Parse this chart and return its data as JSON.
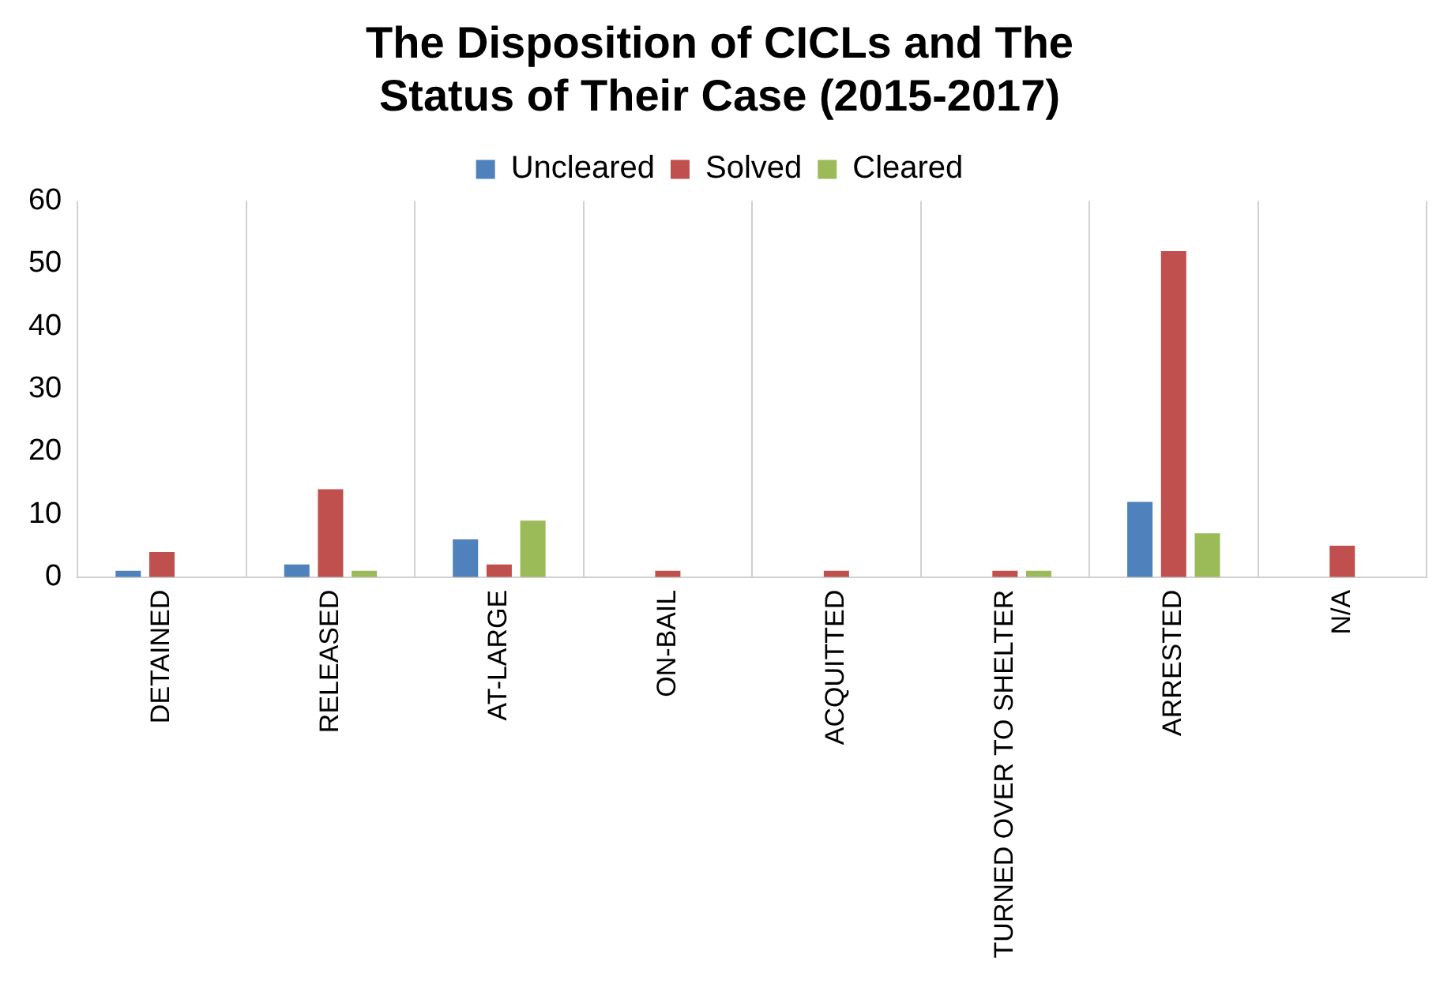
{
  "chart_data": {
    "type": "bar",
    "title": "The Disposition of CICLs and The Status of Their Case (2015-2017)",
    "categories": [
      "DETAINED",
      "RELEASED",
      "AT-LARGE",
      "ON-BAIL",
      "ACQUITTED",
      "TURNED OVER TO SHELTER",
      "ARRESTED",
      "N/A"
    ],
    "series": [
      {
        "name": "Uncleared",
        "color": "#4f81bd",
        "values": [
          1,
          2,
          6,
          0,
          0,
          0,
          12,
          0
        ]
      },
      {
        "name": "Solved",
        "color": "#c0504d",
        "values": [
          4,
          14,
          2,
          1,
          1,
          1,
          52,
          5
        ]
      },
      {
        "name": "Cleared",
        "color": "#9bbb59",
        "values": [
          0,
          1,
          9,
          0,
          0,
          1,
          7,
          0
        ]
      }
    ],
    "ylim": [
      0,
      60
    ],
    "yticks": [
      0,
      10,
      20,
      30,
      40,
      50,
      60
    ],
    "grid": "x",
    "legend": "top"
  }
}
